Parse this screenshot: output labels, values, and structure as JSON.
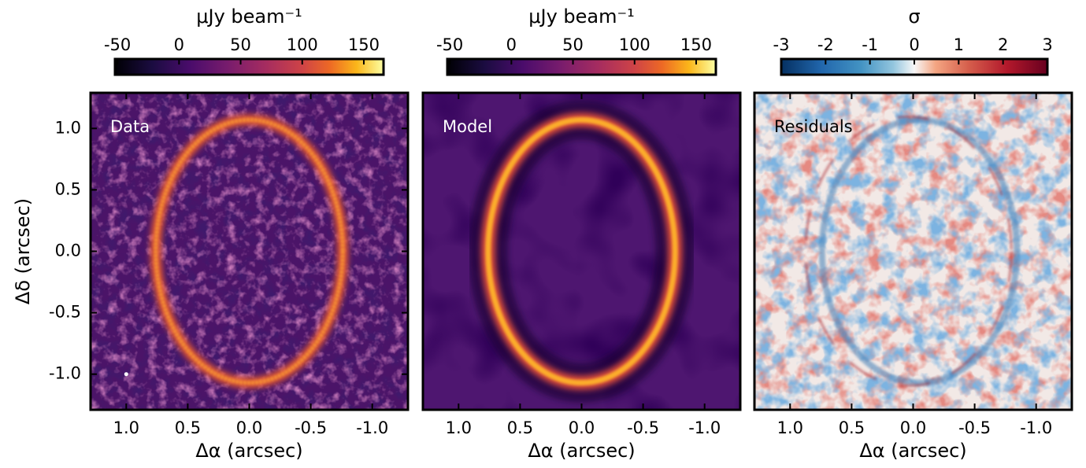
{
  "chart_data": [
    {
      "type": "image",
      "label": "Data",
      "colorbar": {
        "label": "μJy beam⁻¹",
        "lim": [
          -52,
          166
        ],
        "ticks": [
          -50,
          0,
          50,
          100,
          150
        ]
      },
      "xlabel": "Δα (arcsec)",
      "xlim": [
        1.29,
        -1.29
      ],
      "xticks": [
        {
          "value": 1,
          "label": "1.0"
        },
        {
          "value": 0.5,
          "label": "0.5"
        },
        {
          "value": 0,
          "label": "0.0"
        },
        {
          "value": -0.5,
          "label": "-0.5"
        },
        {
          "value": -1,
          "label": "-1.0"
        }
      ],
      "ylabel": "Δδ (arcsec)",
      "ylim": [
        -1.29,
        1.29
      ],
      "yticks": [
        {
          "value": 1,
          "label": "1.0"
        },
        {
          "value": 0.5,
          "label": "0.5"
        },
        {
          "value": 0,
          "label": "0.0"
        },
        {
          "value": -0.5,
          "label": "-0.5"
        },
        {
          "value": -1,
          "label": "-1.0"
        }
      ]
    },
    {
      "type": "image",
      "label": "Model",
      "colorbar": {
        "label": "μJy beam⁻¹",
        "lim": [
          -52,
          166
        ],
        "ticks": [
          -50,
          0,
          50,
          100,
          150
        ]
      },
      "xlabel": "Δα (arcsec)",
      "xlim": [
        1.29,
        -1.29
      ],
      "xticks": [
        {
          "value": 1,
          "label": "1.0"
        },
        {
          "value": 0.5,
          "label": "0.5"
        },
        {
          "value": 0,
          "label": "0.0"
        },
        {
          "value": -0.5,
          "label": "-0.5"
        },
        {
          "value": -1,
          "label": "-1.0"
        }
      ],
      "ylim": [
        -1.29,
        1.29
      ]
    },
    {
      "type": "image",
      "label": "Residuals",
      "colorbar": {
        "label": "σ",
        "lim": [
          -3,
          3
        ],
        "ticks": [
          -3,
          -2,
          -1,
          0,
          1,
          2,
          3
        ]
      },
      "xlabel": "Δα (arcsec)",
      "xlim": [
        1.29,
        -1.29
      ],
      "xticks": [
        {
          "value": 1,
          "label": "1.0"
        },
        {
          "value": 0.5,
          "label": "0.5"
        },
        {
          "value": 0,
          "label": "0.0"
        },
        {
          "value": -0.5,
          "label": "-0.5"
        },
        {
          "value": -1,
          "label": "-1.0"
        }
      ],
      "ylim": [
        -1.29,
        1.29
      ]
    }
  ]
}
